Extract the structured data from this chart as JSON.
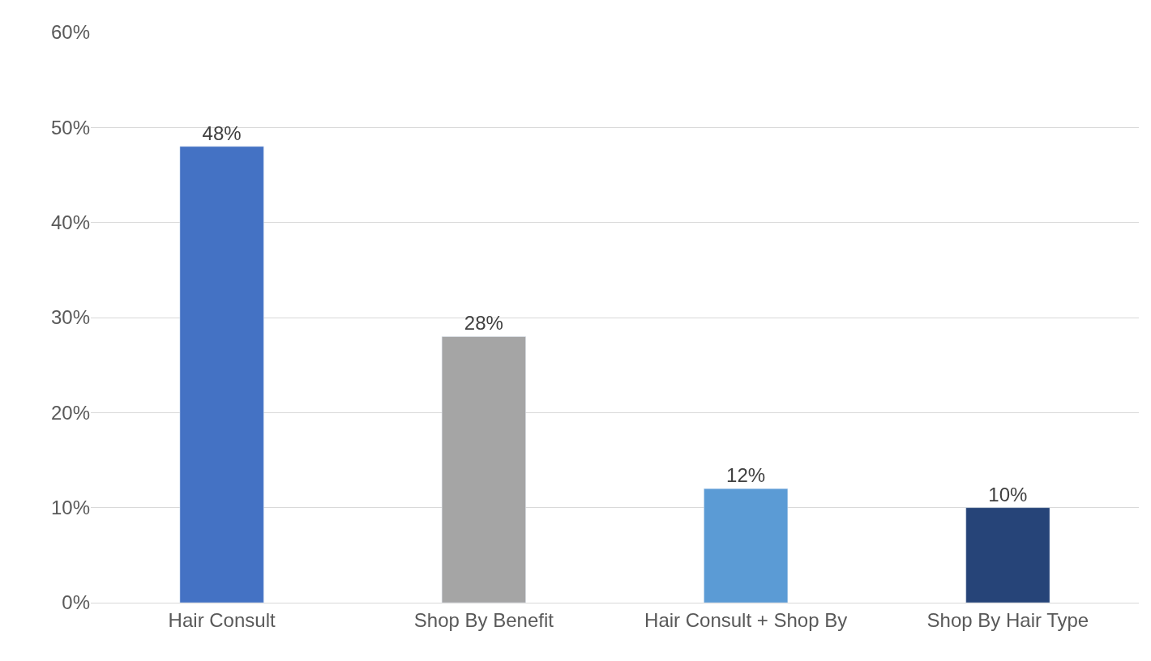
{
  "chart_data": {
    "type": "bar",
    "categories": [
      "Hair Consult",
      "Shop By Benefit",
      "Hair Consult + Shop By",
      "Shop By Hair Type"
    ],
    "values": [
      48,
      28,
      12,
      10
    ],
    "colors": [
      "#4472c4",
      "#a5a5a5",
      "#5b9bd5",
      "#264478"
    ],
    "value_labels": [
      "48%",
      "28%",
      "12%",
      "10%"
    ],
    "ylim": [
      0,
      60
    ],
    "yticks": [
      {
        "value": 0,
        "label": "0%"
      },
      {
        "value": 10,
        "label": "10%"
      },
      {
        "value": 20,
        "label": "20%"
      },
      {
        "value": 30,
        "label": "30%"
      },
      {
        "value": 40,
        "label": "40%"
      },
      {
        "value": 50,
        "label": "50%"
      },
      {
        "value": 60,
        "label": "60%"
      }
    ],
    "grid": "y"
  }
}
